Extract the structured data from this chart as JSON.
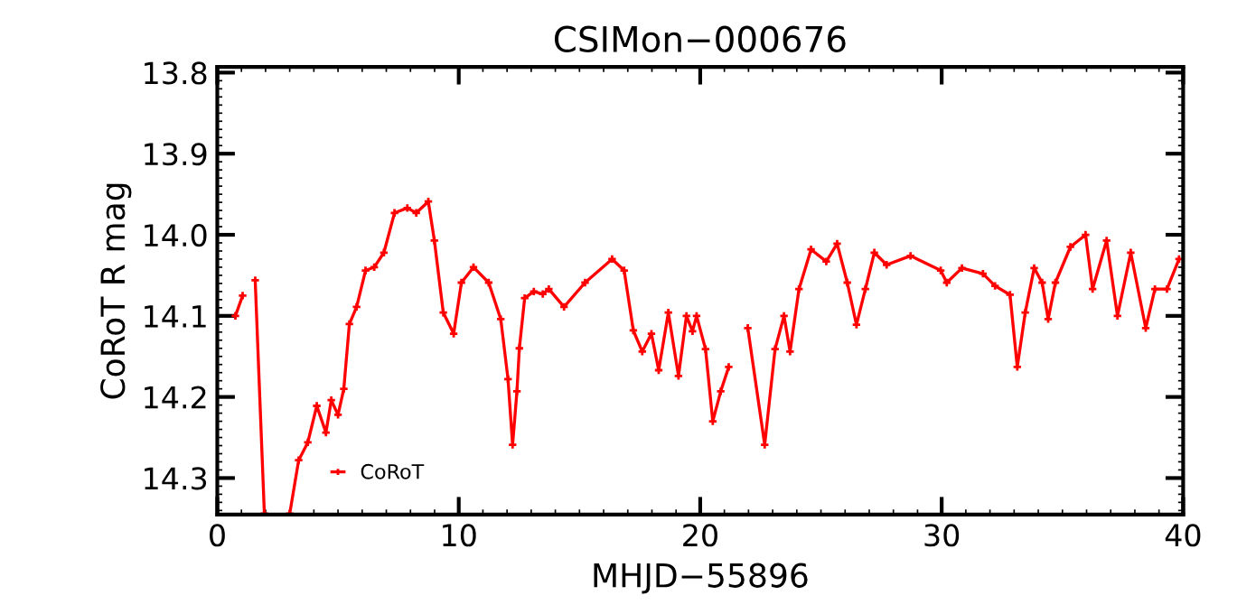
{
  "chart_data": {
    "type": "line",
    "title": "CSIMon−000676",
    "xlabel": "MHJD−55896",
    "ylabel": "CoRoT R mag",
    "xlim": [
      0,
      40
    ],
    "xticks": [
      0,
      10,
      20,
      30,
      40
    ],
    "ylim": [
      14.345,
      13.793
    ],
    "yticks": [
      13.8,
      13.9,
      {
        "value": 14.0,
        "label": "14.0"
      },
      14.1,
      14.2,
      14.3
    ],
    "grid": false,
    "legend": "bottom left",
    "marker": "cross",
    "line_style": "solid",
    "series": [
      {
        "name": "CoRoT",
        "color": "#ff0000",
        "x": [
          0.75,
          1.05,
          1.3,
          1.57,
          1.95,
          2.5,
          3.0,
          3.37,
          3.75,
          4.12,
          4.5,
          4.72,
          5.0,
          5.24,
          5.47,
          5.77,
          6.14,
          6.5,
          6.9,
          7.34,
          7.87,
          8.24,
          8.74,
          8.99,
          9.36,
          9.79,
          10.11,
          10.61,
          11.24,
          11.74,
          12.04,
          12.23,
          12.41,
          12.51,
          12.73,
          13.11,
          13.48,
          13.73,
          14.36,
          15.23,
          16.35,
          16.85,
          17.23,
          17.6,
          17.98,
          18.28,
          18.68,
          19.1,
          19.43,
          19.68,
          19.85,
          20.22,
          20.52,
          20.85,
          21.18,
          21.5,
          21.97,
          22.67,
          23.1,
          23.47,
          23.72,
          24.09,
          24.59,
          25.22,
          25.67,
          26.09,
          26.47,
          26.84,
          27.21,
          27.72,
          28.71,
          29.96,
          30.21,
          30.84,
          31.71,
          32.21,
          32.83,
          33.13,
          33.46,
          33.83,
          34.16,
          34.41,
          34.71,
          35.33,
          35.96,
          36.25,
          36.83,
          37.28,
          37.83,
          38.45,
          38.83,
          39.33,
          39.83
        ],
        "values": [
          14.1,
          14.075,
          null,
          14.056,
          14.344,
          null,
          14.344,
          14.278,
          14.256,
          14.211,
          14.244,
          14.204,
          14.222,
          14.19,
          14.11,
          14.089,
          14.044,
          14.04,
          14.022,
          13.973,
          13.967,
          13.973,
          13.959,
          14.007,
          14.096,
          14.122,
          14.059,
          14.04,
          14.059,
          14.104,
          14.178,
          14.259,
          14.193,
          14.14,
          14.078,
          14.07,
          14.073,
          14.067,
          14.089,
          14.059,
          14.03,
          14.044,
          14.118,
          14.144,
          14.122,
          14.167,
          14.096,
          14.174,
          14.1,
          14.119,
          14.1,
          14.141,
          14.23,
          14.193,
          14.163,
          null,
          14.115,
          14.259,
          14.141,
          14.1,
          14.144,
          14.067,
          14.018,
          14.033,
          14.011,
          14.059,
          14.111,
          14.067,
          14.022,
          14.037,
          14.026,
          14.044,
          14.059,
          14.041,
          14.048,
          14.063,
          14.074,
          14.163,
          14.096,
          14.041,
          14.059,
          14.104,
          14.059,
          14.015,
          14.0,
          14.067,
          14.007,
          14.1,
          14.022,
          14.115,
          14.067,
          14.067,
          14.03
        ]
      }
    ]
  }
}
